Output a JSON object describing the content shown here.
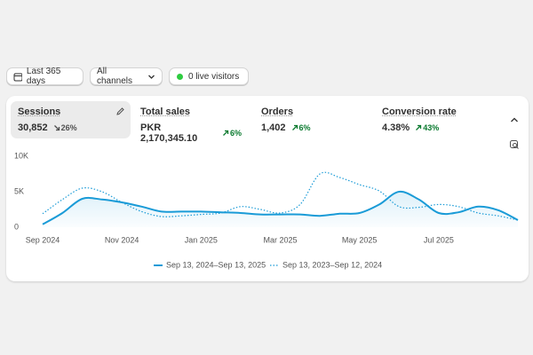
{
  "toolbar": {
    "buttons": [
      "Last 365 days",
      "All channels",
      "0 live visitors"
    ]
  },
  "metrics": [
    {
      "label": "Sessions",
      "value": "30,852",
      "change": "26%",
      "direction": "down"
    },
    {
      "label": "Total sales",
      "value": "PKR 2,170,345.10",
      "change": "6%",
      "direction": "up"
    },
    {
      "label": "Orders",
      "value": "1,402",
      "change": "6%",
      "direction": "up"
    },
    {
      "label": "Conversion rate",
      "value": "4.38%",
      "change": "43%",
      "direction": "up"
    }
  ],
  "chart_data": {
    "type": "line",
    "categories": [
      "Sep 2024",
      null,
      null,
      null,
      "Nov 2024",
      null,
      null,
      null,
      "Jan 2025",
      null,
      null,
      null,
      "Mar 2025",
      null,
      null,
      null,
      "May 2025",
      null,
      null,
      null,
      "Jul 2025",
      null,
      null,
      null,
      null
    ],
    "series": [
      {
        "name": "Sep 13, 2024–Sep 13, 2025",
        "color": "#1a9bd7",
        "style": "solid",
        "values": [
          400,
          2000,
          4000,
          3900,
          3500,
          2900,
          2200,
          2200,
          2200,
          2100,
          2000,
          1800,
          1800,
          1800,
          1600,
          1900,
          2000,
          3200,
          5000,
          3900,
          2000,
          2100,
          2900,
          2400,
          1000
        ]
      },
      {
        "name": "Sep 13, 2023–Sep 12, 2024",
        "color": "#1a9bd7",
        "style": "dotted",
        "values": [
          1900,
          3900,
          5500,
          5000,
          3500,
          2200,
          1500,
          1600,
          1800,
          2000,
          2900,
          2500,
          2000,
          3200,
          7500,
          7000,
          6000,
          5100,
          2900,
          2800,
          3200,
          2900,
          2000,
          1600,
          1000
        ]
      }
    ],
    "ylim": [
      0,
      10000
    ],
    "yticks": [
      0,
      {
        "value": 5000,
        "label": "5K"
      },
      {
        "value": 10000,
        "label": "10K"
      }
    ],
    "grid": false
  }
}
